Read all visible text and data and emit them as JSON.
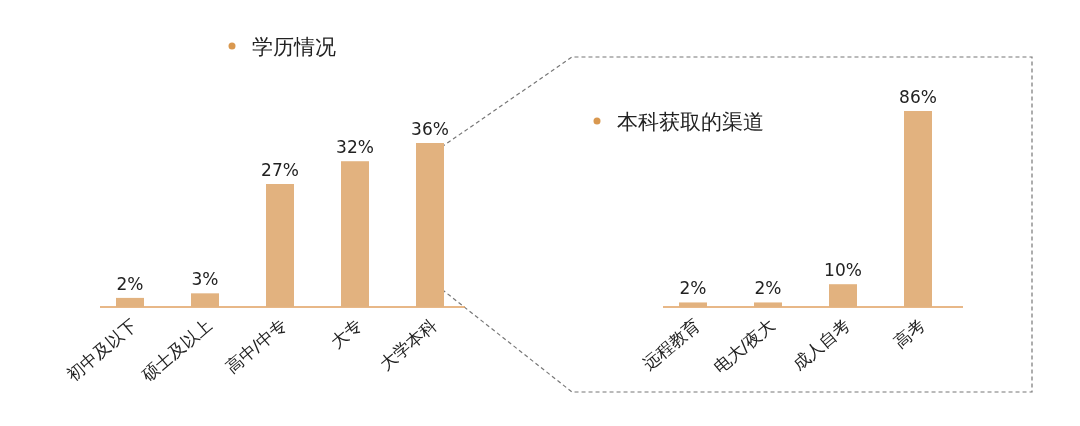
{
  "chart_data": [
    {
      "type": "bar",
      "title": "学历情况",
      "categories": [
        "初中及以下",
        "硕士及以上",
        "高中/中专",
        "大专",
        "大学本科"
      ],
      "values": [
        2,
        3,
        27,
        32,
        36
      ],
      "value_labels": [
        "2%",
        "3%",
        "27%",
        "32%",
        "36%"
      ],
      "color": "#e2b27f"
    },
    {
      "type": "bar",
      "title": "本科获取的渠道",
      "categories": [
        "远程教育",
        "电大/夜大",
        "成人自考",
        "高考"
      ],
      "values": [
        2,
        2,
        10,
        86
      ],
      "value_labels": [
        "2%",
        "2%",
        "10%",
        "86%"
      ],
      "color": "#e2b27f"
    }
  ]
}
